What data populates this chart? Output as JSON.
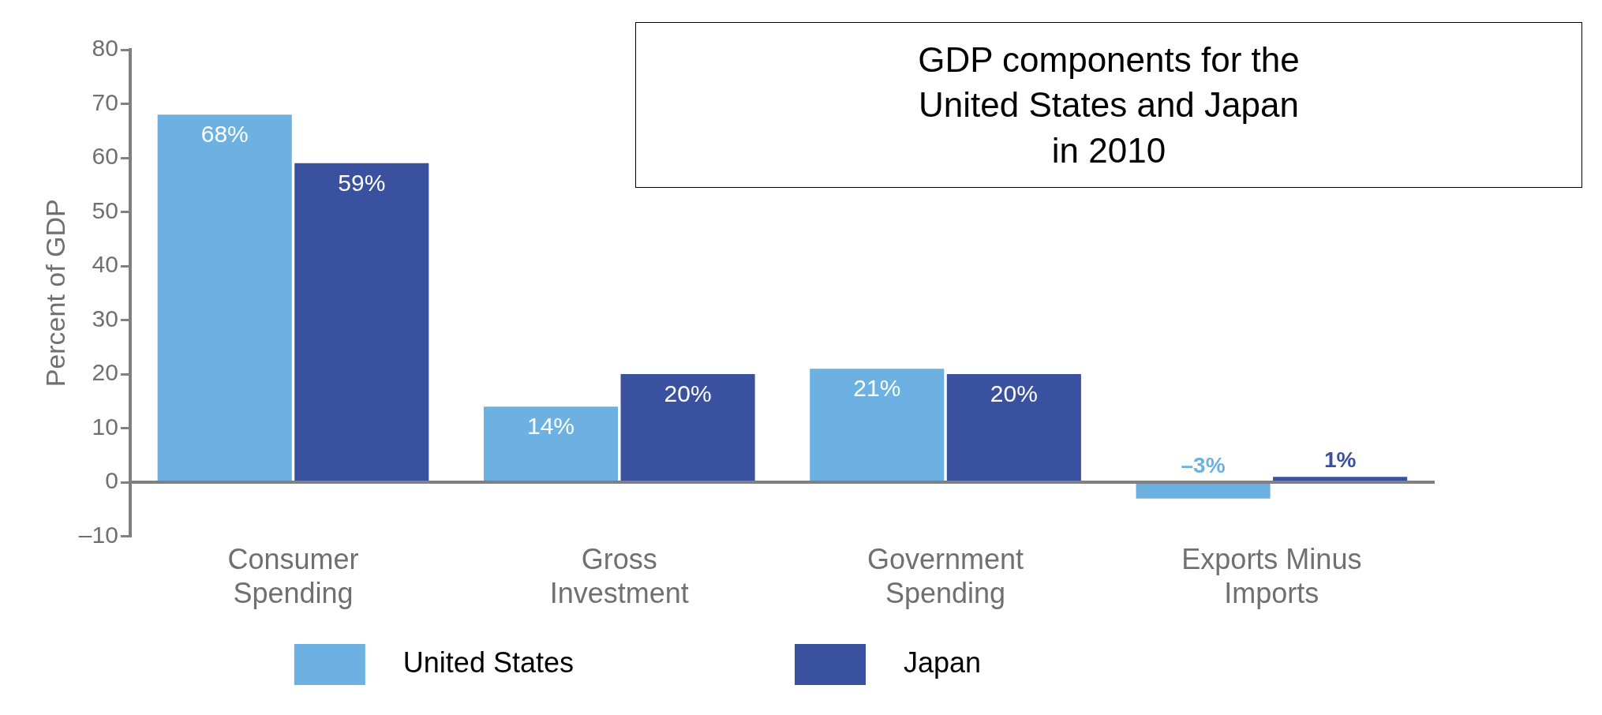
{
  "chart_data": {
    "type": "bar",
    "title": "GDP components for the\nUnited States and Japan\nin 2010",
    "ylabel": "Percent of GDP",
    "categories": [
      "Consumer Spending",
      "Gross Investment",
      "Government Spending",
      "Exports Minus Imports"
    ],
    "series": [
      {
        "name": "United States",
        "color": "#6cb1e1",
        "values": [
          68,
          14,
          21,
          -3
        ],
        "value_labels": [
          "68%",
          "14%",
          "21%",
          "–3%"
        ]
      },
      {
        "name": "Japan",
        "color": "#3a51a0",
        "values": [
          59,
          20,
          20,
          1
        ],
        "value_labels": [
          "59%",
          "20%",
          "20%",
          "1%"
        ]
      }
    ],
    "ylim": [
      -10,
      80
    ],
    "yticks": [
      {
        "value": -10,
        "label": "–10"
      },
      0,
      10,
      20,
      30,
      40,
      50,
      60,
      70,
      80
    ],
    "grid": false,
    "legend": "bottom"
  }
}
